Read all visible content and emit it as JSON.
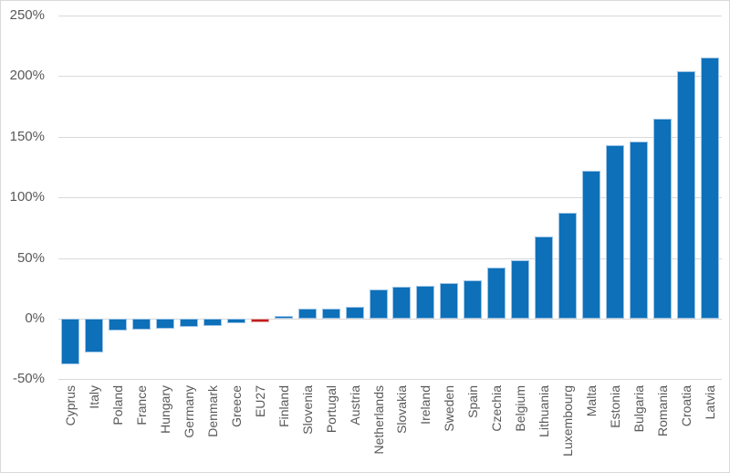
{
  "chart_data": {
    "type": "bar",
    "categories": [
      "Cyprus",
      "Italy",
      "Poland",
      "France",
      "Hungary",
      "Germany",
      "Denmark",
      "Greece",
      "EU27",
      "Finland",
      "Slovenia",
      "Portugal",
      "Austria",
      "Netherlands",
      "Slovakia",
      "Ireland",
      "Sweden",
      "Spain",
      "Czechia",
      "Belgium",
      "Lithuania",
      "Luxembourg",
      "Malta",
      "Estonia",
      "Bulgaria",
      "Romania",
      "Croatia",
      "Latvia"
    ],
    "values": [
      -38,
      -28,
      -10,
      -9,
      -8,
      -7,
      -6,
      -4,
      -3,
      2,
      8,
      8,
      10,
      24,
      26,
      27,
      29,
      32,
      42,
      48,
      68,
      87,
      122,
      143,
      146,
      165,
      204,
      215
    ],
    "unit": "%",
    "highlight_category": "EU27",
    "y_axis": {
      "min": -50,
      "max": 250,
      "tick_step": 50,
      "tick_labels": [
        "250%",
        "200%",
        "150%",
        "100%",
        "50%",
        "0%",
        "-50%"
      ]
    },
    "x_axis": {
      "label_rotation": -90
    },
    "grid": true,
    "legend": false,
    "colors": {
      "bar": "#0D70B9",
      "bar_border": "#9CC3E6",
      "highlight_bar": "#C21E1E",
      "highlight_border": "#E0A3A2",
      "gridline": "#D9D9D9",
      "axis_text": "#595959",
      "chart_border": "#D9D9D9",
      "background": "#FFFFFF"
    }
  }
}
